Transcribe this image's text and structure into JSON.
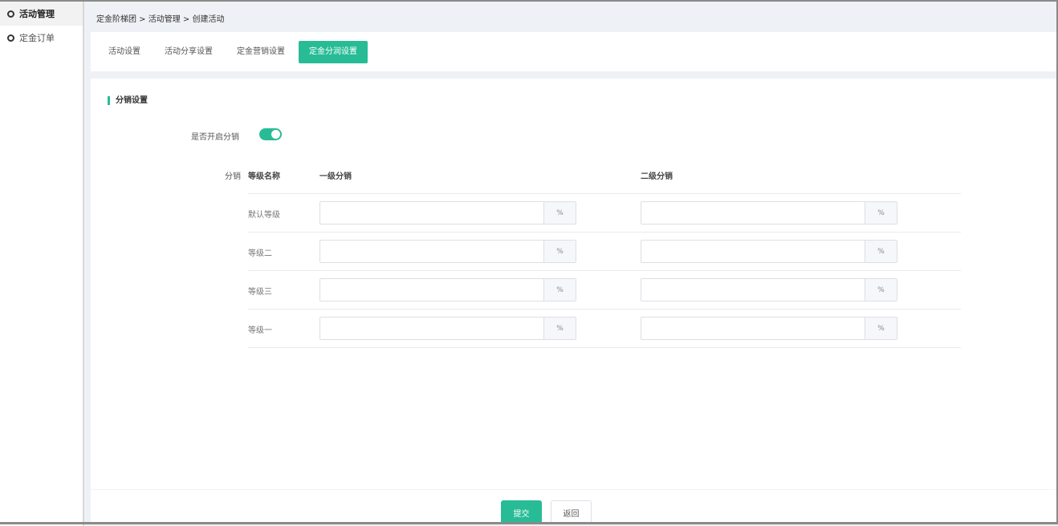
{
  "sidebar": {
    "items": [
      {
        "label": "活动管理",
        "active": true
      },
      {
        "label": "定金订单",
        "active": false
      }
    ]
  },
  "breadcrumb": "定金阶梯团 > 活动管理 > 创建活动",
  "tabs": [
    {
      "label": "活动设置"
    },
    {
      "label": "活动分享设置"
    },
    {
      "label": "定金营销设置"
    },
    {
      "label": "定金分润设置",
      "active": true
    }
  ],
  "section": {
    "title": "分销设置",
    "toggle_label": "是否开启分销",
    "toggle_on": true,
    "table_label": "分销",
    "headers": [
      "等级名称",
      "一级分销",
      "二级分销"
    ],
    "rows": [
      {
        "name": "默认等级",
        "level1": "",
        "level2": ""
      },
      {
        "name": "等级二",
        "level1": "",
        "level2": ""
      },
      {
        "name": "等级三",
        "level1": "",
        "level2": ""
      },
      {
        "name": "等级一",
        "level1": "",
        "level2": ""
      }
    ],
    "suffix": "%"
  },
  "footer": {
    "submit": "提交",
    "back": "返回"
  },
  "colors": {
    "accent": "#28bc96"
  }
}
